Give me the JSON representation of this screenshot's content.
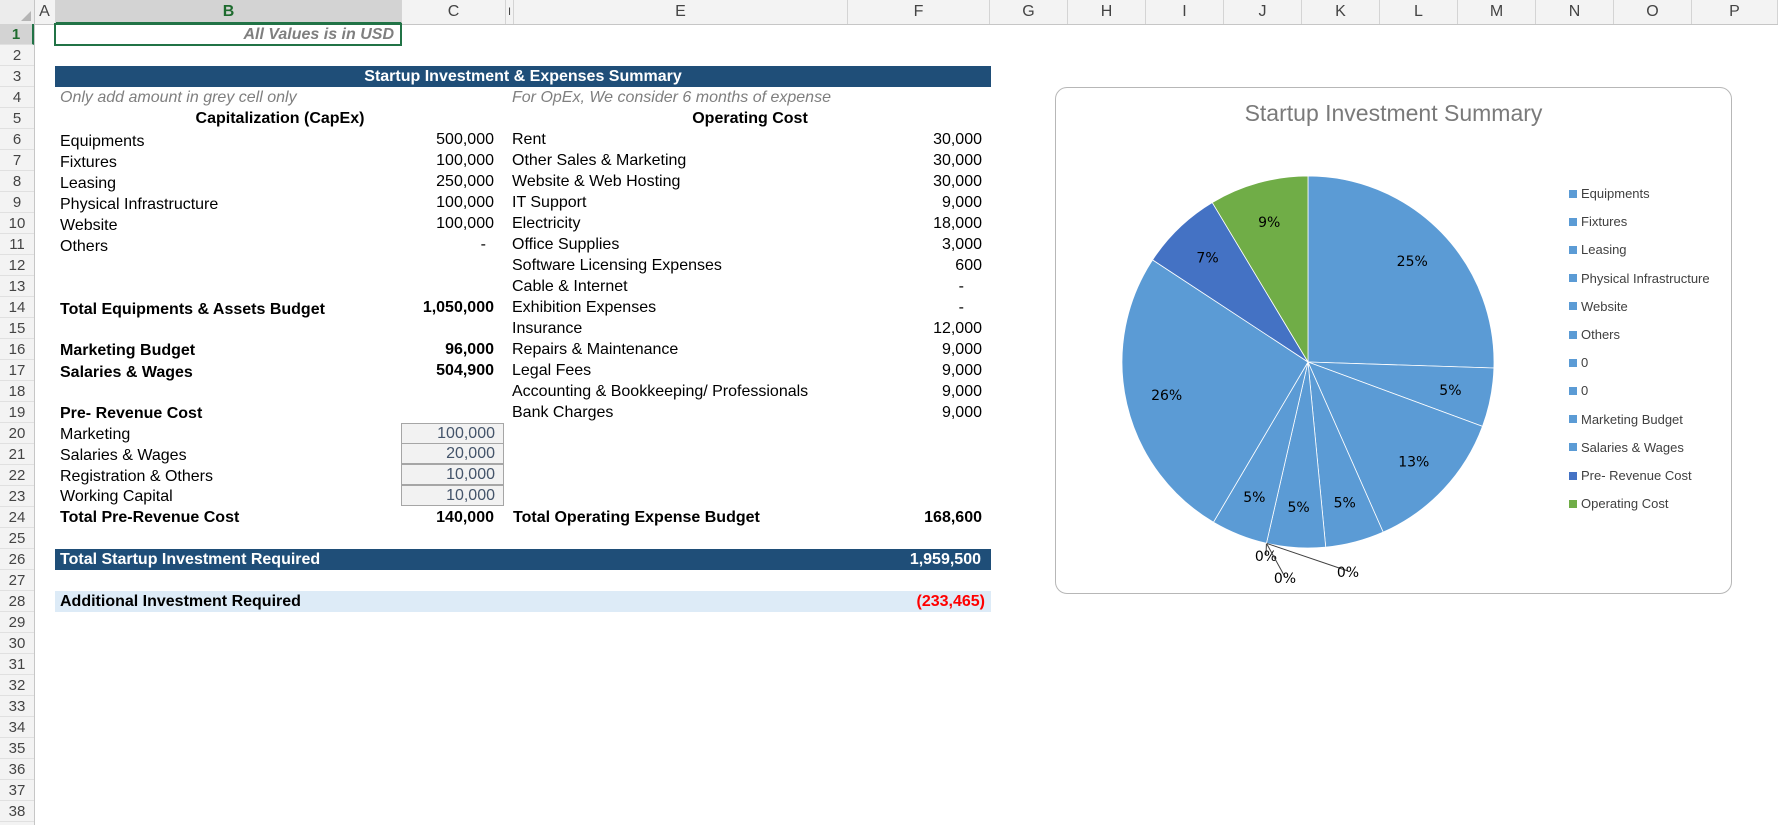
{
  "columns": [
    "A",
    "B",
    "C",
    "I",
    "E",
    "F",
    "G",
    "H",
    "I",
    "J",
    "K",
    "L",
    "M",
    "N",
    "O",
    "P"
  ],
  "rows": [
    "1",
    "2",
    "3",
    "4",
    "5",
    "6",
    "7",
    "8",
    "9",
    "10",
    "11",
    "12",
    "13",
    "14",
    "15",
    "16",
    "17",
    "18",
    "19",
    "20",
    "21",
    "22",
    "23",
    "24",
    "25",
    "26",
    "27",
    "28",
    "29",
    "30",
    "31",
    "32",
    "33",
    "34",
    "35",
    "36",
    "37",
    "38"
  ],
  "active_cell": {
    "column": "B",
    "row": "1"
  },
  "note": "All Values is in USD",
  "summary_title": "Startup Investment & Expenses Summary",
  "capex": {
    "hint": "Only add amount in grey cell only",
    "header": "Capitalization (CapEx)",
    "items": [
      {
        "label": "Equipments",
        "value": "500,000"
      },
      {
        "label": "Fixtures",
        "value": "100,000"
      },
      {
        "label": "Leasing",
        "value": "250,000"
      },
      {
        "label": "Physical Infrastructure",
        "value": "100,000"
      },
      {
        "label": "Website",
        "value": "100,000"
      },
      {
        "label": "Others",
        "value": "-"
      }
    ],
    "total_label": "Total Equipments & Assets Budget",
    "total_value": "1,050,000",
    "marketing_label": "Marketing Budget",
    "marketing_value": "96,000",
    "salaries_label": "Salaries & Wages",
    "salaries_value": "504,900"
  },
  "prerevenue": {
    "header": "Pre- Revenue Cost",
    "items": [
      {
        "label": "Marketing",
        "value": "100,000"
      },
      {
        "label": "Salaries & Wages",
        "value": "20,000"
      },
      {
        "label": "Registration & Others",
        "value": "10,000"
      },
      {
        "label": "Working Capital",
        "value": "10,000"
      }
    ],
    "total_label": "Total Pre-Revenue Cost",
    "total_value": "140,000"
  },
  "opex": {
    "hint": "For OpEx, We consider 6 months of expense",
    "header": "Operating Cost",
    "items": [
      {
        "label": "Rent",
        "value": "30,000"
      },
      {
        "label": "Other Sales & Marketing",
        "value": "30,000"
      },
      {
        "label": "Website & Web Hosting",
        "value": "30,000"
      },
      {
        "label": "IT Support",
        "value": "9,000"
      },
      {
        "label": "Electricity",
        "value": "18,000"
      },
      {
        "label": "Office Supplies",
        "value": "3,000"
      },
      {
        "label": "Software Licensing Expenses",
        "value": "600"
      },
      {
        "label": "Cable & Internet",
        "value": "-"
      },
      {
        "label": "Exhibition Expenses",
        "value": "-"
      },
      {
        "label": "Insurance",
        "value": "12,000"
      },
      {
        "label": "Repairs & Maintenance",
        "value": "9,000"
      },
      {
        "label": "Legal Fees",
        "value": "9,000"
      },
      {
        "label": "Accounting & Bookkeeping/ Professionals",
        "value": "9,000"
      },
      {
        "label": "Bank Charges",
        "value": "9,000"
      }
    ],
    "total_label": "Total Operating Expense Budget",
    "total_value": "168,600"
  },
  "total_startup": {
    "label": "Total Startup Investment Required",
    "value": "1,959,500"
  },
  "additional": {
    "label": "Additional Investment Required",
    "value": "(233,465)"
  },
  "colors": {
    "header_bar": "#1f4e78",
    "light_bar": "#ddebf7",
    "negative": "#ff0000",
    "slice_default": "#5b9bd5",
    "slice_prerevenue": "#4472c4",
    "slice_opex": "#70ad47"
  },
  "chart_data": {
    "type": "pie",
    "title": "Startup Investment Summary",
    "legend_position": "right",
    "slices": [
      {
        "name": "Equipments",
        "value": 500000,
        "label": "25%",
        "color": "#5b9bd5"
      },
      {
        "name": "Fixtures",
        "value": 100000,
        "label": "5%",
        "color": "#5b9bd5"
      },
      {
        "name": "Leasing",
        "value": 250000,
        "label": "13%",
        "color": "#5b9bd5"
      },
      {
        "name": "Physical Infrastructure",
        "value": 100000,
        "label": "5%",
        "color": "#5b9bd5"
      },
      {
        "name": "Website",
        "value": 100000,
        "label": "5%",
        "color": "#5b9bd5"
      },
      {
        "name": "Others",
        "value": 0,
        "label": "0%",
        "color": "#5b9bd5"
      },
      {
        "name": "0",
        "value": 0,
        "label": "0%",
        "color": "#5b9bd5"
      },
      {
        "name": "0",
        "value": 0,
        "label": "0%",
        "color": "#5b9bd5"
      },
      {
        "name": "Marketing Budget",
        "value": 96000,
        "label": "5%",
        "color": "#5b9bd5"
      },
      {
        "name": "Salaries & Wages",
        "value": 504900,
        "label": "26%",
        "color": "#5b9bd5"
      },
      {
        "name": "Pre- Revenue Cost",
        "value": 140000,
        "label": "7%",
        "color": "#4472c4"
      },
      {
        "name": "Operating Cost",
        "value": 168600,
        "label": "9%",
        "color": "#70ad47"
      }
    ]
  }
}
